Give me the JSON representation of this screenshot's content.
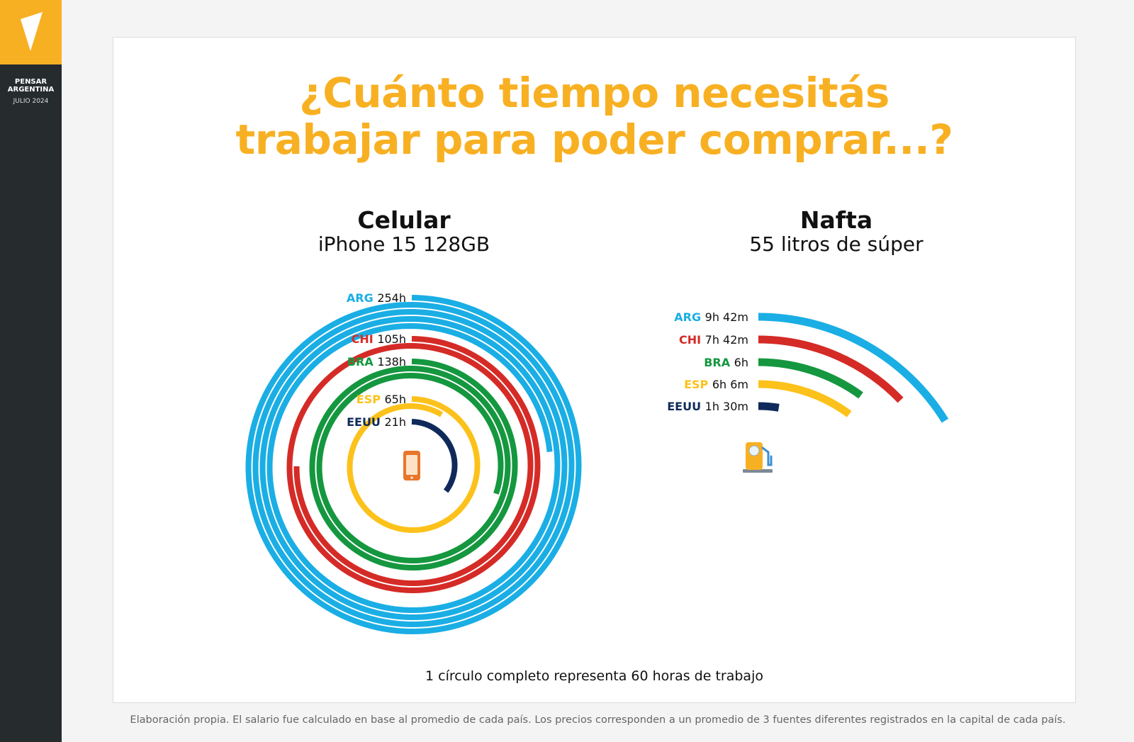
{
  "brand": {
    "name_line1": "PENSAR",
    "name_line2": "ARGENTINA",
    "date": "JULIO 2024"
  },
  "title": {
    "line1": "¿Cuánto tiempo necesitás",
    "line2": "trabajar para poder comprar...?"
  },
  "phone_section": {
    "title": "Celular",
    "subtitle": "iPhone 15 128GB",
    "icon": "smartphone-icon"
  },
  "fuel_section": {
    "title": "Nafta",
    "subtitle": "55 litros de súper",
    "icon": "fuel-pump-icon"
  },
  "note": "1 círculo completo representa 60 horas de trabajo",
  "footer": "Elaboración propia. El salario fue calculado en base al promedio de cada país. Los precios corresponden a un promedio de 3 fuentes diferentes registrados en la capital de cada país.",
  "colors": {
    "ARG": "#1aaee5",
    "CHI": "#d52b27",
    "BRA": "#15973f",
    "ESP": "#fcc21b",
    "EEUU": "#0f2a5a",
    "accent": "#f8b023"
  },
  "chart_data": [
    {
      "type": "radial_spiral",
      "title": "Celular",
      "subtitle": "iPhone 15 128GB",
      "unit": "hours",
      "full_circle_hours": 60,
      "series": [
        {
          "name": "ARG",
          "value": 254,
          "label": "254h"
        },
        {
          "name": "CHI",
          "value": 105,
          "label": "105h"
        },
        {
          "name": "BRA",
          "value": 138,
          "label": "138h"
        },
        {
          "name": "ESP",
          "value": 65,
          "label": "65h"
        },
        {
          "name": "EEUU",
          "value": 21,
          "label": "21h"
        }
      ]
    },
    {
      "type": "radial_bar",
      "title": "Nafta",
      "subtitle": "55 litros de súper",
      "unit": "hours",
      "series": [
        {
          "name": "ARG",
          "value": 9.7,
          "label": "9h 42m"
        },
        {
          "name": "CHI",
          "value": 7.7,
          "label": "7h 42m"
        },
        {
          "name": "BRA",
          "value": 6,
          "label": "6h"
        },
        {
          "name": "ESP",
          "value": 6.1,
          "label": "6h 6m"
        },
        {
          "name": "EEUU",
          "value": 1.5,
          "label": "1h 30m"
        }
      ]
    }
  ]
}
